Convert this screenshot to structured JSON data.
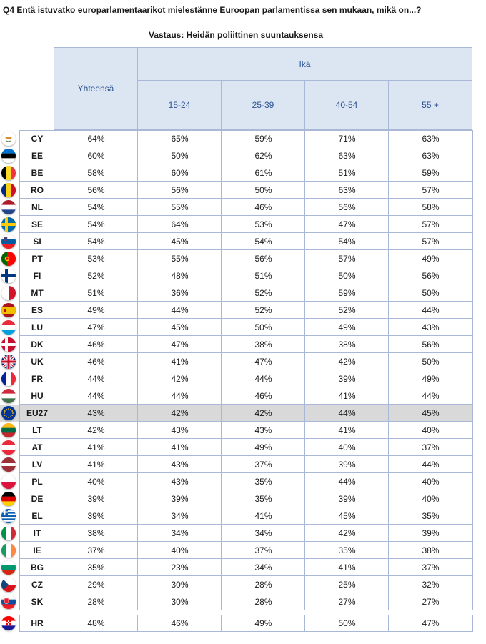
{
  "title": "Q4 Entä istuvatko europarlamentaarikot mielestänne Euroopan parlamentissa sen mukaan, mikä on...?",
  "subtitle": "Vastaus: Heidän poliittinen suuntauksensa",
  "header": {
    "total": "Yhteensä",
    "group": "Ikä",
    "cols": [
      "15-24",
      "25-39",
      "40-54",
      "55 +"
    ]
  },
  "rows": [
    {
      "code": "CY",
      "flag": "cy-flag",
      "values": [
        "64%",
        "65%",
        "59%",
        "71%",
        "63%"
      ]
    },
    {
      "code": "EE",
      "flag": "ee-flag",
      "values": [
        "60%",
        "50%",
        "62%",
        "63%",
        "63%"
      ]
    },
    {
      "code": "BE",
      "flag": "be-flag",
      "values": [
        "58%",
        "60%",
        "61%",
        "51%",
        "59%"
      ]
    },
    {
      "code": "RO",
      "flag": "ro-flag",
      "values": [
        "56%",
        "56%",
        "50%",
        "63%",
        "57%"
      ]
    },
    {
      "code": "NL",
      "flag": "nl-flag",
      "values": [
        "54%",
        "55%",
        "46%",
        "56%",
        "58%"
      ]
    },
    {
      "code": "SE",
      "flag": "se-flag",
      "values": [
        "54%",
        "64%",
        "53%",
        "47%",
        "57%"
      ]
    },
    {
      "code": "SI",
      "flag": "si-flag",
      "values": [
        "54%",
        "45%",
        "54%",
        "54%",
        "57%"
      ]
    },
    {
      "code": "PT",
      "flag": "pt-flag",
      "values": [
        "53%",
        "55%",
        "56%",
        "57%",
        "49%"
      ]
    },
    {
      "code": "FI",
      "flag": "fi-flag",
      "values": [
        "52%",
        "48%",
        "51%",
        "50%",
        "56%"
      ]
    },
    {
      "code": "MT",
      "flag": "mt-flag",
      "values": [
        "51%",
        "36%",
        "52%",
        "59%",
        "50%"
      ]
    },
    {
      "code": "ES",
      "flag": "es-flag",
      "values": [
        "49%",
        "44%",
        "52%",
        "52%",
        "44%"
      ]
    },
    {
      "code": "LU",
      "flag": "lu-flag",
      "values": [
        "47%",
        "45%",
        "50%",
        "49%",
        "43%"
      ]
    },
    {
      "code": "DK",
      "flag": "dk-flag",
      "values": [
        "46%",
        "47%",
        "38%",
        "38%",
        "56%"
      ]
    },
    {
      "code": "UK",
      "flag": "uk-flag",
      "values": [
        "46%",
        "41%",
        "47%",
        "42%",
        "50%"
      ]
    },
    {
      "code": "FR",
      "flag": "fr-flag",
      "values": [
        "44%",
        "42%",
        "44%",
        "39%",
        "49%"
      ]
    },
    {
      "code": "HU",
      "flag": "hu-flag",
      "values": [
        "44%",
        "44%",
        "46%",
        "41%",
        "44%"
      ]
    },
    {
      "code": "EU27",
      "flag": "eu-flag",
      "values": [
        "43%",
        "42%",
        "42%",
        "44%",
        "45%"
      ]
    },
    {
      "code": "LT",
      "flag": "lt-flag",
      "values": [
        "42%",
        "43%",
        "43%",
        "41%",
        "40%"
      ]
    },
    {
      "code": "AT",
      "flag": "at-flag",
      "values": [
        "41%",
        "41%",
        "49%",
        "40%",
        "37%"
      ]
    },
    {
      "code": "LV",
      "flag": "lv-flag",
      "values": [
        "41%",
        "43%",
        "37%",
        "39%",
        "44%"
      ]
    },
    {
      "code": "PL",
      "flag": "pl-flag",
      "values": [
        "40%",
        "43%",
        "35%",
        "44%",
        "40%"
      ]
    },
    {
      "code": "DE",
      "flag": "de-flag",
      "values": [
        "39%",
        "39%",
        "35%",
        "39%",
        "40%"
      ]
    },
    {
      "code": "EL",
      "flag": "el-flag",
      "values": [
        "39%",
        "34%",
        "41%",
        "45%",
        "35%"
      ]
    },
    {
      "code": "IT",
      "flag": "it-flag",
      "values": [
        "38%",
        "34%",
        "34%",
        "42%",
        "39%"
      ]
    },
    {
      "code": "IE",
      "flag": "ie-flag",
      "values": [
        "37%",
        "40%",
        "37%",
        "35%",
        "38%"
      ]
    },
    {
      "code": "BG",
      "flag": "bg-flag",
      "values": [
        "35%",
        "23%",
        "34%",
        "41%",
        "37%"
      ]
    },
    {
      "code": "CZ",
      "flag": "cz-flag",
      "values": [
        "29%",
        "30%",
        "28%",
        "25%",
        "32%"
      ]
    },
    {
      "code": "SK",
      "flag": "sk-flag",
      "values": [
        "28%",
        "30%",
        "28%",
        "27%",
        "27%"
      ]
    },
    {
      "code": "HR",
      "flag": "hr-flag",
      "values": [
        "48%",
        "46%",
        "49%",
        "50%",
        "47%"
      ]
    }
  ],
  "colors": {
    "header_bg": "#dce6f2",
    "header_text": "#2f5496",
    "border": "#a8b8d6",
    "eu_row_bg": "#d9d9d9"
  }
}
